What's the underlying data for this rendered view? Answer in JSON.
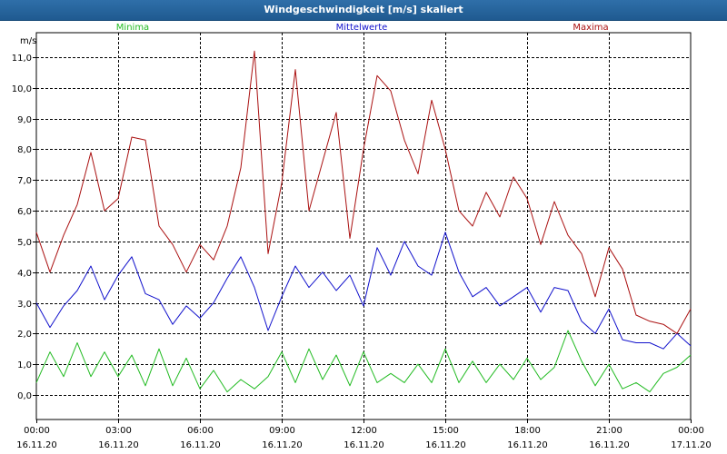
{
  "window": {
    "title": "Windgeschwindigkeit [m/s] skaliert"
  },
  "colors": {
    "minima": "#22bb22",
    "mittel": "#1111cc",
    "maxima": "#aa1111",
    "grid": "#000000",
    "background": "#ffffff",
    "titlebar": "#2a66a0"
  },
  "chart_data": {
    "type": "line",
    "title": "Windgeschwindigkeit [m/s] skaliert",
    "ylabel": "m/s",
    "ylim": [
      -0.8,
      11.8
    ],
    "yticks": [
      0.0,
      1.0,
      2.0,
      3.0,
      4.0,
      5.0,
      6.0,
      7.0,
      8.0,
      9.0,
      10.0,
      11.0
    ],
    "ytick_labels": [
      "0,0",
      "1,0",
      "2,0",
      "3,0",
      "4,0",
      "5,0",
      "6,0",
      "7,0",
      "8,0",
      "9,0",
      "10,0",
      "11,0"
    ],
    "xlim": [
      0,
      24
    ],
    "xticks": [
      0,
      3,
      6,
      9,
      12,
      15,
      18,
      21,
      24
    ],
    "xtick_times": [
      "00:00",
      "03:00",
      "06:00",
      "09:00",
      "12:00",
      "15:00",
      "18:00",
      "21:00",
      "00:00"
    ],
    "xtick_dates": [
      "16.11.20",
      "16.11.20",
      "16.11.20",
      "16.11.20",
      "16.11.20",
      "16.11.20",
      "16.11.20",
      "16.11.20",
      "17.11.20"
    ],
    "grid": true,
    "legend": "top",
    "series": [
      {
        "name": "Minima",
        "color": "#22bb22",
        "x": [
          0,
          0.5,
          1,
          1.5,
          2,
          2.5,
          3,
          3.5,
          4,
          4.5,
          5,
          5.5,
          6,
          6.5,
          7,
          7.5,
          8,
          8.5,
          9,
          9.5,
          10,
          10.5,
          11,
          11.5,
          12,
          12.5,
          13,
          13.5,
          14,
          14.5,
          15,
          15.5,
          16,
          16.5,
          17,
          17.5,
          18,
          18.5,
          19,
          19.5,
          20,
          20.5,
          21,
          21.5,
          22,
          22.5,
          23,
          23.5,
          24
        ],
        "values": [
          0.4,
          1.4,
          0.6,
          1.7,
          0.6,
          1.4,
          0.6,
          1.3,
          0.3,
          1.5,
          0.3,
          1.2,
          0.2,
          0.8,
          0.1,
          0.5,
          0.2,
          0.6,
          1.4,
          0.4,
          1.5,
          0.5,
          1.3,
          0.3,
          1.4,
          0.4,
          0.7,
          0.4,
          1.0,
          0.4,
          1.5,
          0.4,
          1.1,
          0.4,
          1.0,
          0.5,
          1.2,
          0.5,
          0.9,
          2.1,
          1.1,
          0.3,
          1.0,
          0.2,
          0.4,
          0.1,
          0.7,
          0.9,
          1.3
        ]
      },
      {
        "name": "Mittelwerte",
        "color": "#1111cc",
        "x": [
          0,
          0.5,
          1,
          1.5,
          2,
          2.5,
          3,
          3.5,
          4,
          4.5,
          5,
          5.5,
          6,
          6.5,
          7,
          7.5,
          8,
          8.5,
          9,
          9.5,
          10,
          10.5,
          11,
          11.5,
          12,
          12.5,
          13,
          13.5,
          14,
          14.5,
          15,
          15.5,
          16,
          16.5,
          17,
          17.5,
          18,
          18.5,
          19,
          19.5,
          20,
          20.5,
          21,
          21.5,
          22,
          22.5,
          23,
          23.5,
          24
        ],
        "values": [
          3.0,
          2.2,
          2.9,
          3.4,
          4.2,
          3.1,
          3.9,
          4.5,
          3.3,
          3.1,
          2.3,
          2.9,
          2.5,
          3.0,
          3.8,
          4.5,
          3.5,
          2.1,
          3.2,
          4.2,
          3.5,
          4.0,
          3.4,
          3.9,
          2.9,
          4.8,
          3.9,
          5.0,
          4.2,
          3.9,
          5.3,
          4.0,
          3.2,
          3.5,
          2.9,
          3.2,
          3.5,
          2.7,
          3.5,
          3.4,
          2.4,
          2.0,
          2.8,
          1.8,
          1.7,
          1.7,
          1.5,
          2.0,
          1.6
        ]
      },
      {
        "name": "Maxima",
        "color": "#aa1111",
        "x": [
          0,
          0.5,
          1,
          1.5,
          2,
          2.5,
          3,
          3.5,
          4,
          4.5,
          5,
          5.5,
          6,
          6.5,
          7,
          7.5,
          8,
          8.5,
          9,
          9.5,
          10,
          10.5,
          11,
          11.5,
          12,
          12.5,
          13,
          13.5,
          14,
          14.5,
          15,
          15.5,
          16,
          16.5,
          17,
          17.5,
          18,
          18.5,
          19,
          19.5,
          20,
          20.5,
          21,
          21.5,
          22,
          22.5,
          23,
          23.5,
          24
        ],
        "values": [
          5.3,
          4.0,
          5.2,
          6.2,
          7.9,
          6.0,
          6.4,
          8.4,
          8.3,
          5.5,
          4.9,
          4.0,
          4.9,
          4.4,
          5.5,
          7.4,
          11.2,
          4.6,
          6.9,
          10.6,
          6.0,
          7.6,
          9.2,
          5.1,
          8.0,
          10.4,
          9.9,
          8.3,
          7.2,
          9.6,
          8.0,
          6.0,
          5.5,
          6.6,
          5.8,
          7.1,
          6.4,
          4.9,
          6.3,
          5.2,
          4.6,
          3.2,
          4.8,
          4.1,
          2.6,
          2.4,
          2.3,
          2.0,
          2.8
        ]
      }
    ]
  }
}
